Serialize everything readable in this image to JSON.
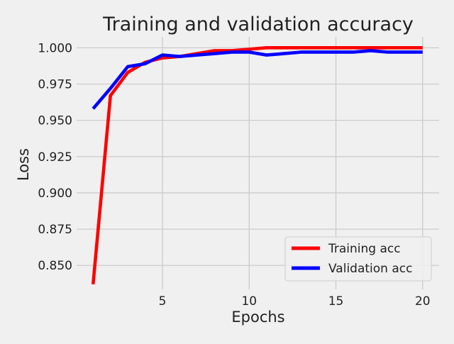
{
  "chart_data": {
    "type": "line",
    "title": "Training and validation accuracy",
    "xlabel": "Epochs",
    "ylabel": "Loss",
    "xlim": [
      0.05,
      20.95
    ],
    "ylim": [
      0.8335,
      1.0075
    ],
    "xticks": [
      5,
      10,
      15,
      20
    ],
    "xtick_labels": [
      "5",
      "10",
      "15",
      "20"
    ],
    "yticks": [
      0.85,
      0.875,
      0.9,
      0.925,
      0.95,
      0.975,
      1.0
    ],
    "ytick_labels": [
      "0.850",
      "0.875",
      "0.900",
      "0.925",
      "0.950",
      "0.975",
      "1.000"
    ],
    "grid": true,
    "legend_position": "lower right",
    "x": [
      1,
      2,
      3,
      4,
      5,
      6,
      7,
      8,
      9,
      10,
      11,
      12,
      13,
      14,
      15,
      16,
      17,
      18,
      19,
      20
    ],
    "series": [
      {
        "name": "Training acc",
        "color": "#ff0000",
        "values": [
          0.837,
          0.967,
          0.983,
          0.99,
          0.993,
          0.994,
          0.996,
          0.998,
          0.998,
          0.999,
          1.0,
          1.0,
          1.0,
          1.0,
          1.0,
          1.0,
          1.0,
          1.0,
          1.0,
          1.0
        ]
      },
      {
        "name": "Validation acc",
        "color": "#0000ff",
        "values": [
          0.958,
          0.972,
          0.987,
          0.989,
          0.995,
          0.994,
          0.995,
          0.996,
          0.997,
          0.997,
          0.995,
          0.996,
          0.997,
          0.997,
          0.997,
          0.997,
          0.998,
          0.997,
          0.997,
          0.997
        ]
      }
    ]
  }
}
